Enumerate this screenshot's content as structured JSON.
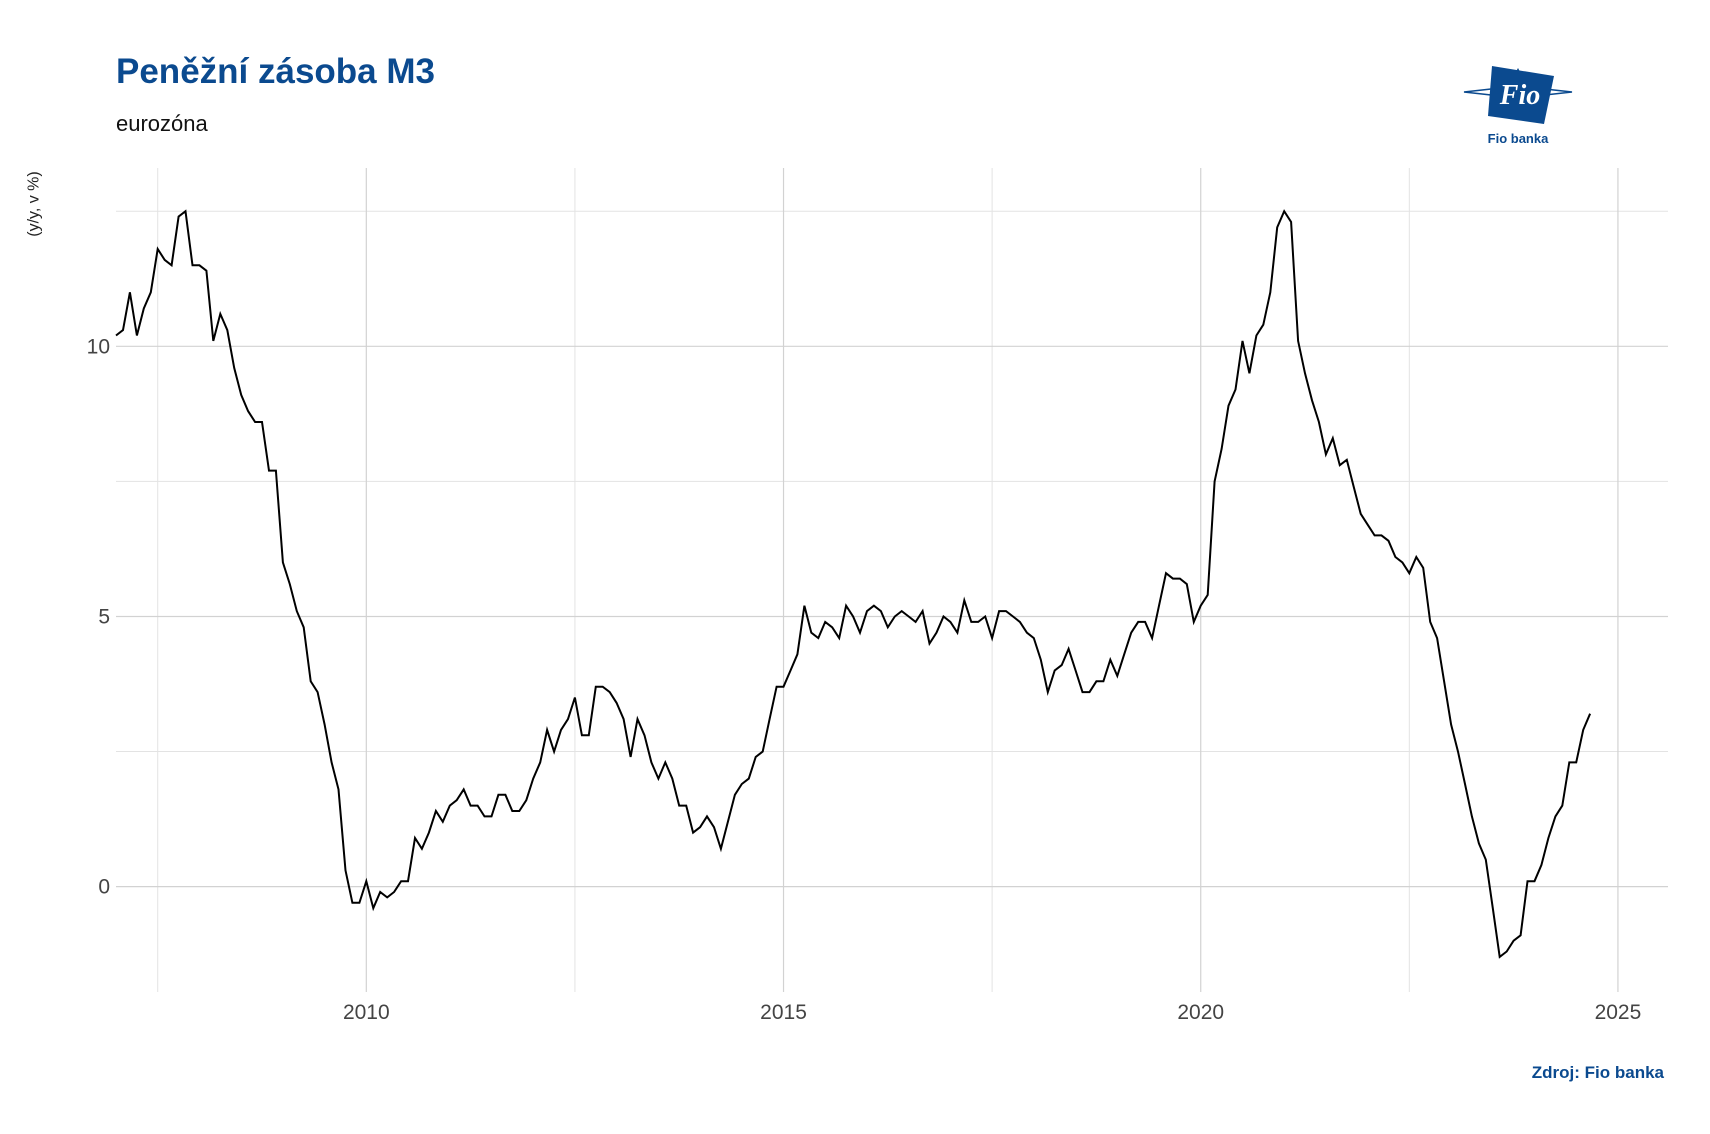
{
  "header": {
    "title": "Peněžní zásoba M3",
    "subtitle": "eurozóna",
    "source": "Zdroj: Fio banka"
  },
  "logo": {
    "mark_text": "Fio",
    "caption": "Fio banka",
    "color": "#0b4a8f"
  },
  "chart_data": {
    "type": "line",
    "ylabel": "(y/y, v %)",
    "xlabel": "",
    "xlim": [
      2007.0,
      2025.6
    ],
    "ylim": [
      -1.95,
      13.3
    ],
    "x_ticks": [
      2010,
      2015,
      2020,
      2025
    ],
    "y_ticks": [
      0,
      5,
      10
    ],
    "grid": true,
    "line_color": "#000000",
    "series": [
      {
        "start": "2007-01",
        "frequency": "monthly",
        "values": [
          10.2,
          10.3,
          11.0,
          10.2,
          10.7,
          11.0,
          11.8,
          11.6,
          11.5,
          12.4,
          12.5,
          11.5,
          11.5,
          11.4,
          10.1,
          10.6,
          10.3,
          9.6,
          9.1,
          8.8,
          8.6,
          8.6,
          7.7,
          7.7,
          6.0,
          5.6,
          5.1,
          4.8,
          3.8,
          3.6,
          3.0,
          2.3,
          1.8,
          0.3,
          -0.3,
          -0.3,
          0.1,
          -0.4,
          -0.1,
          -0.2,
          -0.1,
          0.1,
          0.1,
          0.9,
          0.7,
          1.0,
          1.4,
          1.2,
          1.5,
          1.6,
          1.8,
          1.5,
          1.5,
          1.3,
          1.3,
          1.7,
          1.7,
          1.4,
          1.4,
          1.6,
          2.0,
          2.3,
          2.9,
          2.5,
          2.9,
          3.1,
          3.5,
          2.8,
          2.8,
          3.7,
          3.7,
          3.6,
          3.4,
          3.1,
          2.4,
          3.1,
          2.8,
          2.3,
          2.0,
          2.3,
          2.0,
          1.5,
          1.5,
          1.0,
          1.1,
          1.3,
          1.1,
          0.7,
          1.2,
          1.7,
          1.9,
          2.0,
          2.4,
          2.5,
          3.1,
          3.7,
          3.7,
          4.0,
          4.3,
          5.2,
          4.7,
          4.6,
          4.9,
          4.8,
          4.6,
          5.2,
          5.0,
          4.7,
          5.1,
          5.2,
          5.1,
          4.8,
          5.0,
          5.1,
          5.0,
          4.9,
          5.1,
          4.5,
          4.7,
          5.0,
          4.9,
          4.7,
          5.3,
          4.9,
          4.9,
          5.0,
          4.6,
          5.1,
          5.1,
          5.0,
          4.9,
          4.7,
          4.6,
          4.2,
          3.6,
          4.0,
          4.1,
          4.4,
          4.0,
          3.6,
          3.6,
          3.8,
          3.8,
          4.2,
          3.9,
          4.3,
          4.7,
          4.9,
          4.9,
          4.6,
          5.2,
          5.8,
          5.7,
          5.7,
          5.6,
          4.9,
          5.2,
          5.4,
          7.5,
          8.1,
          8.9,
          9.2,
          10.1,
          9.5,
          10.2,
          10.4,
          11.0,
          12.2,
          12.5,
          12.3,
          10.1,
          9.5,
          9.0,
          8.6,
          8.0,
          8.3,
          7.8,
          7.9,
          7.4,
          6.9,
          6.7,
          6.5,
          6.5,
          6.4,
          6.1,
          6.0,
          5.8,
          6.1,
          5.9,
          4.9,
          4.6,
          3.8,
          3.0,
          2.5,
          1.9,
          1.3,
          0.8,
          0.5,
          -0.4,
          -1.3,
          -1.2,
          -1.0,
          -0.9,
          0.1,
          0.1,
          0.4,
          0.9,
          1.3,
          1.5,
          2.3,
          2.3,
          2.9,
          3.2
        ]
      }
    ]
  }
}
